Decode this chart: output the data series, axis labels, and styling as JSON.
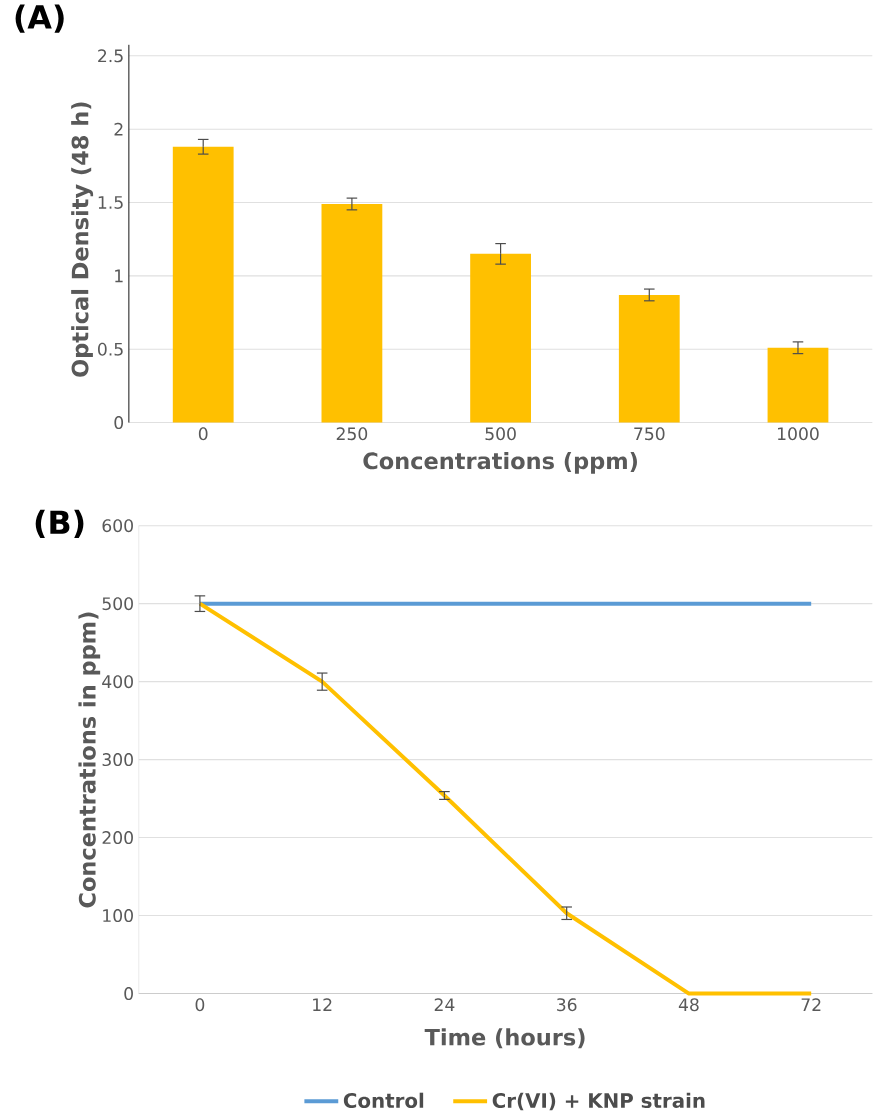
{
  "chart_data": [
    {
      "type": "bar",
      "title": "(A)",
      "xlabel": "Concentrations  (ppm)",
      "ylabel": "Optical Density (48 h)",
      "categories": [
        "0",
        "250",
        "500",
        "750",
        "1000"
      ],
      "values": [
        1.88,
        1.49,
        1.15,
        0.87,
        0.51
      ],
      "errors": [
        0.05,
        0.04,
        0.07,
        0.04,
        0.04
      ],
      "color": "#ffc000",
      "ylim": [
        0,
        2.5
      ],
      "yticks": [
        0,
        0.5,
        1,
        1.5,
        2,
        2.5
      ],
      "grid": "y"
    },
    {
      "type": "line",
      "title": "(B)",
      "xlabel": "Time (hours)",
      "ylabel": "Concentrations in ppm)",
      "categories": [
        "0",
        "12",
        "24",
        "36",
        "48",
        "72"
      ],
      "series": [
        {
          "name": "Control",
          "color": "#5b9bd5",
          "values": [
            500,
            500,
            500,
            500,
            500,
            500
          ]
        },
        {
          "name": "Cr(VI) + KNP strain",
          "color": "#ffc000",
          "values": [
            500,
            400,
            254,
            103,
            0,
            0
          ],
          "errors": [
            10,
            11,
            5,
            8,
            null,
            null
          ]
        }
      ],
      "ylim": [
        0,
        600
      ],
      "yticks": [
        0,
        100,
        200,
        300,
        400,
        500,
        600
      ],
      "grid": "y",
      "legend": "bottom",
      "marker": "none",
      "line_style": "solid"
    }
  ]
}
